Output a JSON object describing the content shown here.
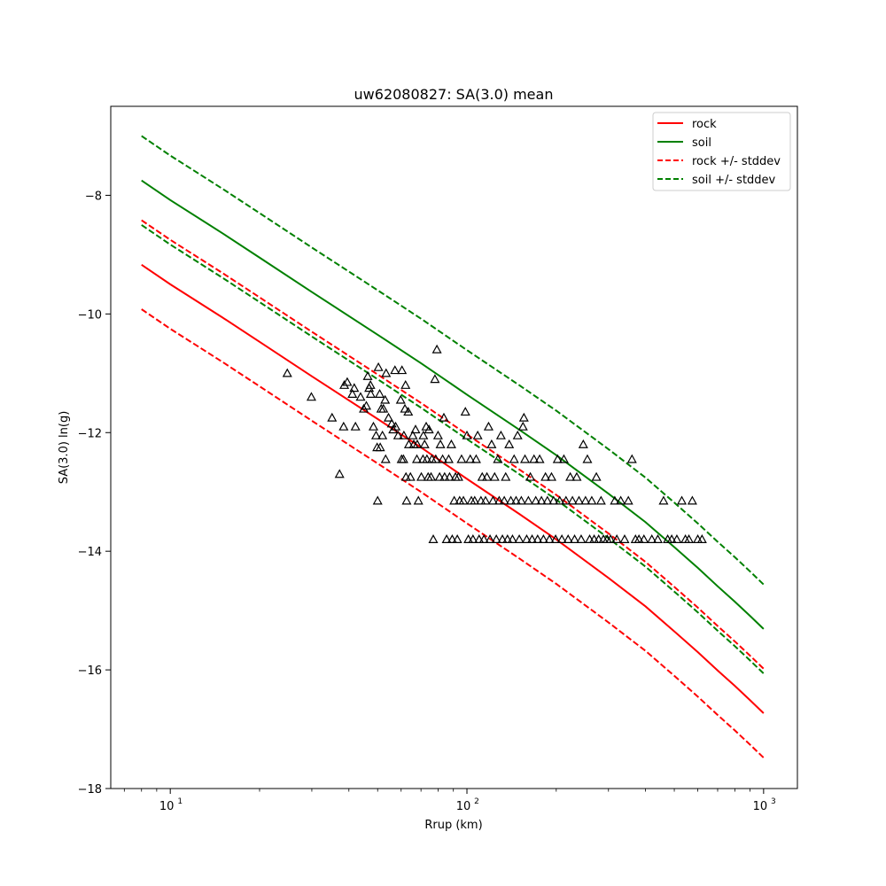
{
  "chart_data": {
    "type": "line",
    "title": "uw62080827: SA(3.0) mean",
    "xlabel": "Rrup (km)",
    "ylabel": "SA(3.0) ln(g)",
    "xscale": "log",
    "xlim": [
      6.3,
      1300
    ],
    "ylim": [
      -18,
      -6.5
    ],
    "x_ticks": [
      {
        "value": 10,
        "base": "10",
        "exp": "1"
      },
      {
        "value": 100,
        "base": "10",
        "exp": "2"
      },
      {
        "value": 1000,
        "base": "10",
        "exp": "3"
      }
    ],
    "y_ticks": [
      -18,
      -16,
      -14,
      -12,
      -10,
      -8
    ],
    "y_tick_labels": [
      "−18",
      "−16",
      "−14",
      "−12",
      "−10",
      "−8"
    ],
    "grid": false,
    "legend_position": "top-right",
    "series": [
      {
        "name": "rock",
        "color": "#ff0000",
        "style": "solid",
        "x": [
          8,
          10,
          15,
          20,
          30,
          50,
          70,
          100,
          150,
          200,
          300,
          400,
          500,
          600,
          700,
          800,
          900,
          1000
        ],
        "y": [
          -9.17,
          -9.5,
          -10.06,
          -10.47,
          -11.05,
          -11.77,
          -12.25,
          -12.78,
          -13.37,
          -13.8,
          -14.45,
          -14.93,
          -15.35,
          -15.7,
          -16.01,
          -16.27,
          -16.51,
          -16.73
        ]
      },
      {
        "name": "soil",
        "color": "#008000",
        "style": "solid",
        "x": [
          8,
          10,
          15,
          20,
          30,
          50,
          70,
          100,
          150,
          200,
          300,
          400,
          500,
          600,
          700,
          800,
          900,
          1000
        ],
        "y": [
          -7.75,
          -8.08,
          -8.64,
          -9.05,
          -9.63,
          -10.35,
          -10.83,
          -11.36,
          -11.95,
          -12.38,
          -13.03,
          -13.51,
          -13.93,
          -14.28,
          -14.59,
          -14.85,
          -15.09,
          -15.31
        ]
      },
      {
        "name": "rock +/- stddev",
        "color": "#ff0000",
        "style": "dashed",
        "x": [
          8,
          10,
          15,
          20,
          30,
          50,
          70,
          100,
          150,
          200,
          300,
          400,
          500,
          600,
          700,
          800,
          900,
          1000
        ],
        "y": [
          -8.42,
          -8.75,
          -9.31,
          -9.72,
          -10.3,
          -11.02,
          -11.5,
          -12.03,
          -12.62,
          -13.05,
          -13.7,
          -14.18,
          -14.6,
          -14.95,
          -15.26,
          -15.52,
          -15.76,
          -15.98
        ]
      },
      {
        "name": "",
        "color": "#ff0000",
        "style": "dashed",
        "x": [
          8,
          10,
          15,
          20,
          30,
          50,
          70,
          100,
          150,
          200,
          300,
          400,
          500,
          600,
          700,
          800,
          900,
          1000
        ],
        "y": [
          -9.92,
          -10.25,
          -10.81,
          -11.22,
          -11.8,
          -12.52,
          -13.0,
          -13.53,
          -14.12,
          -14.55,
          -15.2,
          -15.68,
          -16.1,
          -16.45,
          -16.76,
          -17.02,
          -17.26,
          -17.48
        ]
      },
      {
        "name": "soil +/- stddev",
        "color": "#008000",
        "style": "dashed",
        "x": [
          8,
          10,
          15,
          20,
          30,
          50,
          70,
          100,
          150,
          200,
          300,
          400,
          500,
          600,
          700,
          800,
          900,
          1000
        ],
        "y": [
          -7.0,
          -7.33,
          -7.89,
          -8.3,
          -8.88,
          -9.6,
          -10.08,
          -10.61,
          -11.2,
          -11.63,
          -12.28,
          -12.76,
          -13.18,
          -13.53,
          -13.84,
          -14.1,
          -14.34,
          -14.56
        ]
      },
      {
        "name": "",
        "color": "#008000",
        "style": "dashed",
        "x": [
          8,
          10,
          15,
          20,
          30,
          50,
          70,
          100,
          150,
          200,
          300,
          400,
          500,
          600,
          700,
          800,
          900,
          1000
        ],
        "y": [
          -8.5,
          -8.83,
          -9.39,
          -9.8,
          -10.38,
          -11.1,
          -11.58,
          -12.11,
          -12.7,
          -13.13,
          -13.78,
          -14.26,
          -14.68,
          -15.03,
          -15.34,
          -15.6,
          -15.84,
          -16.06
        ]
      }
    ],
    "observations": {
      "marker": "triangle",
      "color": "#000000",
      "points": [
        [
          24.8,
          -11.0
        ],
        [
          29.9,
          -11.4
        ],
        [
          35.1,
          -11.75
        ],
        [
          37.2,
          -12.7
        ],
        [
          38.4,
          -11.9
        ],
        [
          38.6,
          -11.2
        ],
        [
          39.5,
          -11.15
        ],
        [
          41.1,
          -11.35
        ],
        [
          41.7,
          -11.25
        ],
        [
          42.1,
          -11.9
        ],
        [
          43.8,
          -11.4
        ],
        [
          44.9,
          -11.6
        ],
        [
          45.8,
          -11.55
        ],
        [
          46.3,
          -11.05
        ],
        [
          46.8,
          -11.25
        ],
        [
          47.3,
          -11.2
        ],
        [
          47.4,
          -11.35
        ],
        [
          48.4,
          -11.9
        ],
        [
          49.4,
          -12.05
        ],
        [
          49.8,
          -12.25
        ],
        [
          50.0,
          -13.15
        ],
        [
          50.3,
          -10.9
        ],
        [
          50.8,
          -11.35
        ],
        [
          51.0,
          -12.25
        ],
        [
          51.4,
          -11.6
        ],
        [
          51.9,
          -12.05
        ],
        [
          52.3,
          -11.6
        ],
        [
          53.0,
          -11.45
        ],
        [
          53.2,
          -12.45
        ],
        [
          53.4,
          -11.0
        ],
        [
          54.4,
          -11.75
        ],
        [
          55.8,
          -11.85
        ],
        [
          56.4,
          -11.95
        ],
        [
          57.2,
          -10.95
        ],
        [
          57.5,
          -11.9
        ],
        [
          58.6,
          -12.05
        ],
        [
          59.8,
          -11.45
        ],
        [
          60.2,
          -12.45
        ],
        [
          60.4,
          -10.95
        ],
        [
          61.1,
          -12.45
        ],
        [
          61.3,
          -12.05
        ],
        [
          61.8,
          -11.6
        ],
        [
          62.1,
          -11.2
        ],
        [
          62.3,
          -12.75
        ],
        [
          62.6,
          -13.15
        ],
        [
          63.4,
          -11.65
        ],
        [
          63.7,
          -12.2
        ],
        [
          64.5,
          -12.75
        ],
        [
          65.7,
          -12.05
        ],
        [
          66.2,
          -12.2
        ],
        [
          67.1,
          -11.95
        ],
        [
          67.8,
          -12.45
        ],
        [
          68.0,
          -12.2
        ],
        [
          68.6,
          -13.15
        ],
        [
          70.2,
          -12.75
        ],
        [
          71.1,
          -12.45
        ],
        [
          71.3,
          -12.05
        ],
        [
          72.0,
          -12.2
        ],
        [
          72.9,
          -11.9
        ],
        [
          73.3,
          -12.45
        ],
        [
          74.0,
          -12.75
        ],
        [
          74.5,
          -11.95
        ],
        [
          75.7,
          -12.75
        ],
        [
          76.2,
          -12.45
        ],
        [
          77.0,
          -13.8
        ],
        [
          78.0,
          -11.1
        ],
        [
          78.5,
          -12.45
        ],
        [
          79.2,
          -10.6
        ],
        [
          79.9,
          -12.05
        ],
        [
          80.9,
          -12.75
        ],
        [
          81.4,
          -12.2
        ],
        [
          82.8,
          -12.45
        ],
        [
          83.6,
          -11.75
        ],
        [
          84.1,
          -12.75
        ],
        [
          85.4,
          -13.8
        ],
        [
          86.8,
          -12.45
        ],
        [
          87.4,
          -12.75
        ],
        [
          88.6,
          -12.2
        ],
        [
          89.2,
          -13.8
        ],
        [
          90.6,
          -13.15
        ],
        [
          91.5,
          -12.75
        ],
        [
          92.8,
          -13.8
        ],
        [
          93.6,
          -12.75
        ],
        [
          94.5,
          -13.15
        ],
        [
          95.9,
          -12.45
        ],
        [
          97.3,
          -13.15
        ],
        [
          98.8,
          -11.65
        ],
        [
          100.0,
          -12.05
        ],
        [
          101.1,
          -13.8
        ],
        [
          102.6,
          -12.45
        ],
        [
          103.5,
          -13.15
        ],
        [
          104.8,
          -13.8
        ],
        [
          106.2,
          -13.15
        ],
        [
          107.4,
          -12.45
        ],
        [
          108.7,
          -12.05
        ],
        [
          109.9,
          -13.8
        ],
        [
          111.5,
          -13.15
        ],
        [
          112.6,
          -12.75
        ],
        [
          114.1,
          -13.8
        ],
        [
          115.5,
          -13.15
        ],
        [
          116.8,
          -12.75
        ],
        [
          118.3,
          -11.9
        ],
        [
          119.6,
          -13.8
        ],
        [
          121.1,
          -12.2
        ],
        [
          122.4,
          -13.15
        ],
        [
          124.0,
          -12.75
        ],
        [
          125.6,
          -13.8
        ],
        [
          127.1,
          -12.45
        ],
        [
          128.4,
          -13.15
        ],
        [
          130.2,
          -12.05
        ],
        [
          131.7,
          -13.8
        ],
        [
          133.6,
          -13.15
        ],
        [
          135.1,
          -12.75
        ],
        [
          137.0,
          -13.8
        ],
        [
          138.8,
          -12.2
        ],
        [
          140.6,
          -13.15
        ],
        [
          142.4,
          -13.8
        ],
        [
          144.2,
          -12.45
        ],
        [
          146.4,
          -13.15
        ],
        [
          148.2,
          -12.05
        ],
        [
          150.1,
          -13.8
        ],
        [
          152.5,
          -13.15
        ],
        [
          154.5,
          -11.9
        ],
        [
          155.6,
          -11.75
        ],
        [
          156.9,
          -12.45
        ],
        [
          159.0,
          -13.8
        ],
        [
          161.1,
          -13.15
        ],
        [
          163.6,
          -12.75
        ],
        [
          165.8,
          -13.8
        ],
        [
          168.3,
          -12.45
        ],
        [
          170.6,
          -13.15
        ],
        [
          173.1,
          -13.8
        ],
        [
          175.8,
          -12.45
        ],
        [
          178.3,
          -13.15
        ],
        [
          181.1,
          -13.8
        ],
        [
          184.0,
          -12.75
        ],
        [
          186.7,
          -13.15
        ],
        [
          189.7,
          -13.8
        ],
        [
          192.8,
          -12.75
        ],
        [
          195.9,
          -13.15
        ],
        [
          199.0,
          -13.8
        ],
        [
          202.1,
          -12.45
        ],
        [
          205.5,
          -13.15
        ],
        [
          208.9,
          -13.8
        ],
        [
          212.2,
          -12.45
        ],
        [
          215.7,
          -13.15
        ],
        [
          219.3,
          -13.8
        ],
        [
          223.0,
          -12.75
        ],
        [
          226.8,
          -13.15
        ],
        [
          230.6,
          -13.8
        ],
        [
          234.5,
          -12.75
        ],
        [
          238.6,
          -13.15
        ],
        [
          242.7,
          -13.8
        ],
        [
          246.7,
          -12.2
        ],
        [
          251.0,
          -13.15
        ],
        [
          254.7,
          -12.45
        ],
        [
          259.2,
          -13.8
        ],
        [
          263.5,
          -13.15
        ],
        [
          268.4,
          -13.8
        ],
        [
          273.1,
          -12.75
        ],
        [
          278.0,
          -13.8
        ],
        [
          283.1,
          -13.15
        ],
        [
          288.4,
          -13.8
        ],
        [
          297.0,
          -13.8
        ],
        [
          305.0,
          -13.8
        ],
        [
          315.0,
          -13.15
        ],
        [
          320.0,
          -13.8
        ],
        [
          330.0,
          -13.15
        ],
        [
          340.0,
          -13.8
        ],
        [
          350.0,
          -13.15
        ],
        [
          360.0,
          -12.45
        ],
        [
          370.0,
          -13.8
        ],
        [
          380.0,
          -13.8
        ],
        [
          395.0,
          -13.8
        ],
        [
          420.0,
          -13.8
        ],
        [
          440.0,
          -13.8
        ],
        [
          460.0,
          -13.15
        ],
        [
          475.0,
          -13.8
        ],
        [
          490.0,
          -13.8
        ],
        [
          510.0,
          -13.8
        ],
        [
          530.0,
          -13.15
        ],
        [
          545.0,
          -13.8
        ],
        [
          560.0,
          -13.8
        ],
        [
          575.0,
          -13.15
        ],
        [
          600.0,
          -13.8
        ],
        [
          620.0,
          -13.8
        ]
      ]
    }
  }
}
